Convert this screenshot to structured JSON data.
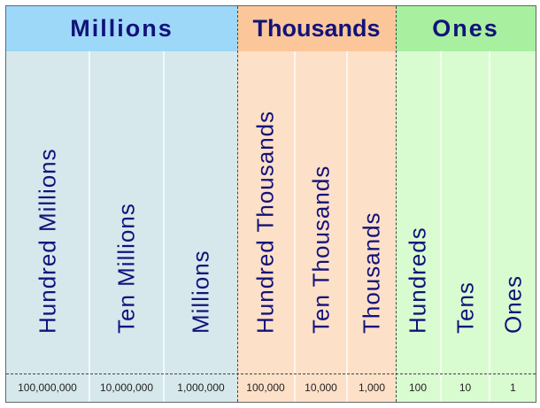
{
  "colors": {
    "text": "#12127a",
    "millions_header": "#9dd8f8",
    "millions_body": "#d6e8ec",
    "thousands_header": "#fbc79a",
    "thousands_body": "#fde0c8",
    "ones_header": "#a8f0a0",
    "ones_body": "#d8fcd0"
  },
  "groups": [
    {
      "title": "Millions",
      "columns": [
        {
          "label": "Hundred Millions",
          "value": "100,000,000"
        },
        {
          "label": "Ten Millions",
          "value": "10,000,000"
        },
        {
          "label": "Millions",
          "value": "1,000,000"
        }
      ]
    },
    {
      "title": "Thousands",
      "columns": [
        {
          "label": "Hundred Thousands",
          "value": "100,000"
        },
        {
          "label": "Ten Thousands",
          "value": "10,000"
        },
        {
          "label": "Thousands",
          "value": "1,000"
        }
      ]
    },
    {
      "title": "Ones",
      "columns": [
        {
          "label": "Hundreds",
          "value": "100"
        },
        {
          "label": "Tens",
          "value": "10"
        },
        {
          "label": "Ones",
          "value": "1"
        }
      ]
    }
  ]
}
